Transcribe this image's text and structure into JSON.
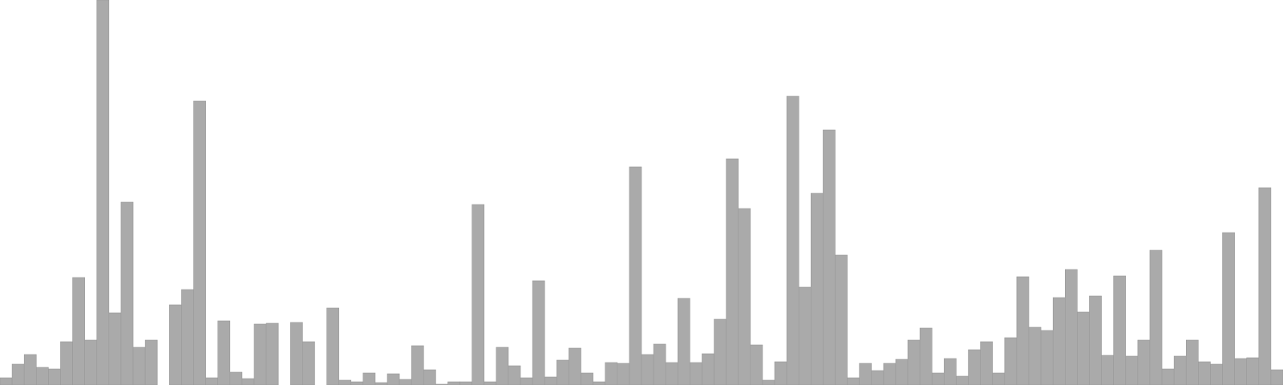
{
  "chart_data": {
    "type": "bar",
    "title": "",
    "xlabel": "",
    "ylabel": "",
    "grid": false,
    "legend": "none",
    "bar_color": "#aaaaaa",
    "bar_edge_color": "#999999",
    "background": "#ffffff",
    "ylim": [
      0,
      480
    ],
    "values": [
      9,
      26,
      38,
      22,
      20,
      54,
      134,
      56,
      480,
      90,
      228,
      47,
      56,
      0,
      100,
      119,
      354,
      9,
      80,
      16,
      8,
      76,
      77,
      0,
      78,
      54,
      0,
      96,
      6,
      4,
      15,
      3,
      14,
      7,
      49,
      19,
      1,
      4,
      4,
      225,
      4,
      47,
      24,
      9,
      130,
      10,
      31,
      46,
      15,
      4,
      28,
      27,
      272,
      38,
      51,
      28,
      108,
      28,
      39,
      82,
      282,
      220,
      50,
      6,
      29,
      360,
      122,
      239,
      318,
      162,
      9,
      27,
      18,
      27,
      32,
      56,
      71,
      15,
      33,
      11,
      44,
      54,
      15,
      59,
      135,
      72,
      68,
      109,
      144,
      91,
      111,
      37,
      136,
      36,
      56,
      168,
      20,
      36,
      56,
      29,
      26,
      190,
      33,
      34,
      246,
      19
    ]
  }
}
